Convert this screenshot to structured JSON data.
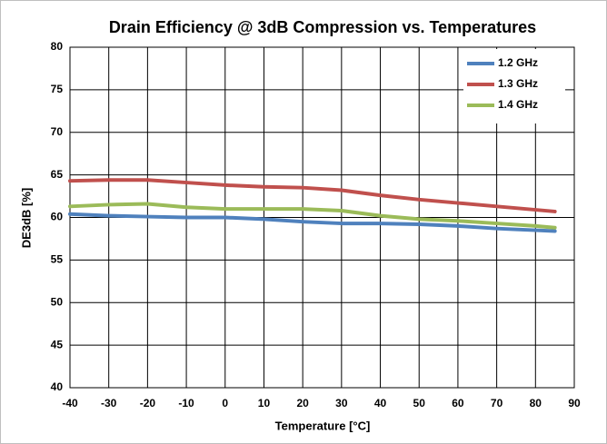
{
  "chart_data": {
    "type": "line",
    "title": "Drain Efficiency @ 3dB Compression vs. Temperatures",
    "x_label": "Temperature [°C]",
    "y_label": "DE3dB [%]",
    "x": [
      -40,
      -30,
      -20,
      -10,
      0,
      10,
      20,
      30,
      40,
      50,
      60,
      70,
      80,
      85
    ],
    "series": [
      {
        "name": "1.2 GHz",
        "color": "#4f81bd",
        "values": [
          60.4,
          60.2,
          60.1,
          60.0,
          60.0,
          59.8,
          59.5,
          59.3,
          59.3,
          59.2,
          59.0,
          58.7,
          58.5,
          58.4
        ]
      },
      {
        "name": "1.3 GHz",
        "color": "#c0504d",
        "values": [
          64.3,
          64.4,
          64.4,
          64.1,
          63.8,
          63.6,
          63.5,
          63.2,
          62.6,
          62.1,
          61.7,
          61.3,
          60.9,
          60.7
        ]
      },
      {
        "name": "1.4 GHz",
        "color": "#9bbb59",
        "values": [
          61.3,
          61.5,
          61.6,
          61.2,
          61.0,
          61.0,
          61.0,
          60.8,
          60.2,
          59.8,
          59.6,
          59.3,
          59.0,
          58.8
        ]
      }
    ],
    "xlim": [
      -40,
      90
    ],
    "xticks": [
      -40,
      -30,
      -20,
      -10,
      0,
      10,
      20,
      30,
      40,
      50,
      60,
      70,
      80,
      90
    ],
    "ylim": [
      40,
      80
    ],
    "yticks": [
      40,
      45,
      50,
      55,
      60,
      65,
      70,
      75,
      80
    ],
    "grid": true,
    "legend": "upper right"
  }
}
